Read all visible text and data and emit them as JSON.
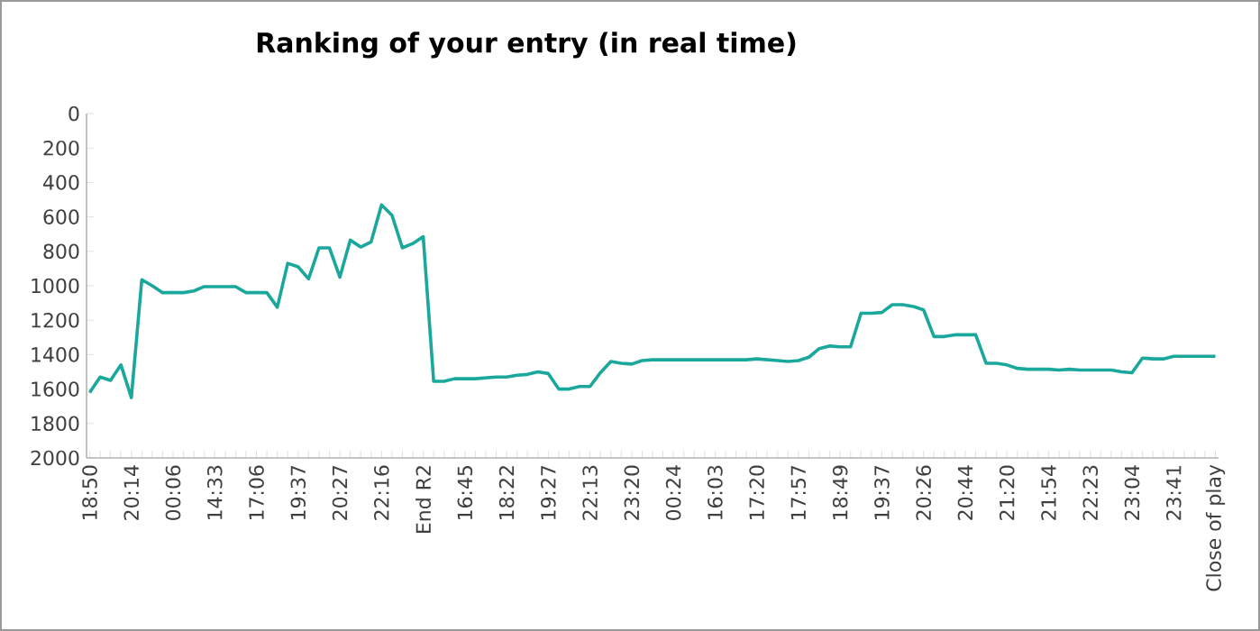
{
  "chart_data": {
    "type": "line",
    "title": "Ranking of your entry (in real time)",
    "categories": [
      "18:50",
      null,
      null,
      null,
      "20:14",
      null,
      null,
      null,
      "00:06",
      null,
      null,
      null,
      "14:33",
      null,
      null,
      null,
      "17:06",
      null,
      null,
      null,
      "19:37",
      null,
      null,
      null,
      "20:27",
      null,
      null,
      null,
      "22:16",
      null,
      null,
      null,
      "End R2",
      null,
      null,
      null,
      "16:45",
      null,
      null,
      null,
      "18:22",
      null,
      null,
      null,
      "19:27",
      null,
      null,
      null,
      "22:13",
      null,
      null,
      null,
      "23:20",
      null,
      null,
      null,
      "00:24",
      null,
      null,
      null,
      "16:03",
      null,
      null,
      null,
      "17:20",
      null,
      null,
      null,
      "17:57",
      null,
      null,
      null,
      "18:49",
      null,
      null,
      null,
      "19:37",
      null,
      null,
      null,
      "20:26",
      null,
      null,
      null,
      "20:44",
      null,
      null,
      null,
      "21:20",
      null,
      null,
      null,
      "21:54",
      null,
      null,
      null,
      "22:23",
      null,
      null,
      null,
      "23:04",
      null,
      null,
      null,
      "23:41",
      null,
      null,
      null,
      "Close of play"
    ],
    "series": [
      {
        "color": "#1aa89c",
        "values": [
          1620,
          1530,
          1550,
          1460,
          1650,
          965,
          1000,
          1040,
          1040,
          1040,
          1030,
          1005,
          1005,
          1005,
          1005,
          1040,
          1040,
          1040,
          1125,
          870,
          890,
          960,
          780,
          780,
          950,
          735,
          775,
          745,
          530,
          590,
          780,
          755,
          715,
          1555,
          1555,
          1540,
          1540,
          1540,
          1535,
          1530,
          1530,
          1520,
          1515,
          1500,
          1510,
          1600,
          1600,
          1585,
          1585,
          1505,
          1440,
          1450,
          1455,
          1435,
          1430,
          1430,
          1430,
          1430,
          1430,
          1430,
          1430,
          1430,
          1430,
          1430,
          1425,
          1430,
          1435,
          1440,
          1435,
          1415,
          1365,
          1350,
          1355,
          1355,
          1160,
          1160,
          1155,
          1110,
          1110,
          1120,
          1140,
          1295,
          1295,
          1285,
          1285,
          1285,
          1450,
          1450,
          1460,
          1480,
          1485,
          1485,
          1485,
          1490,
          1485,
          1490,
          1490,
          1490,
          1490,
          1500,
          1505,
          1420,
          1425,
          1425,
          1410,
          1410,
          1410,
          1410,
          1410
        ]
      }
    ],
    "ylim": [
      2000,
      0
    ],
    "yticks": [
      0,
      200,
      400,
      600,
      800,
      1000,
      1200,
      1400,
      1600,
      1800,
      2000
    ]
  }
}
